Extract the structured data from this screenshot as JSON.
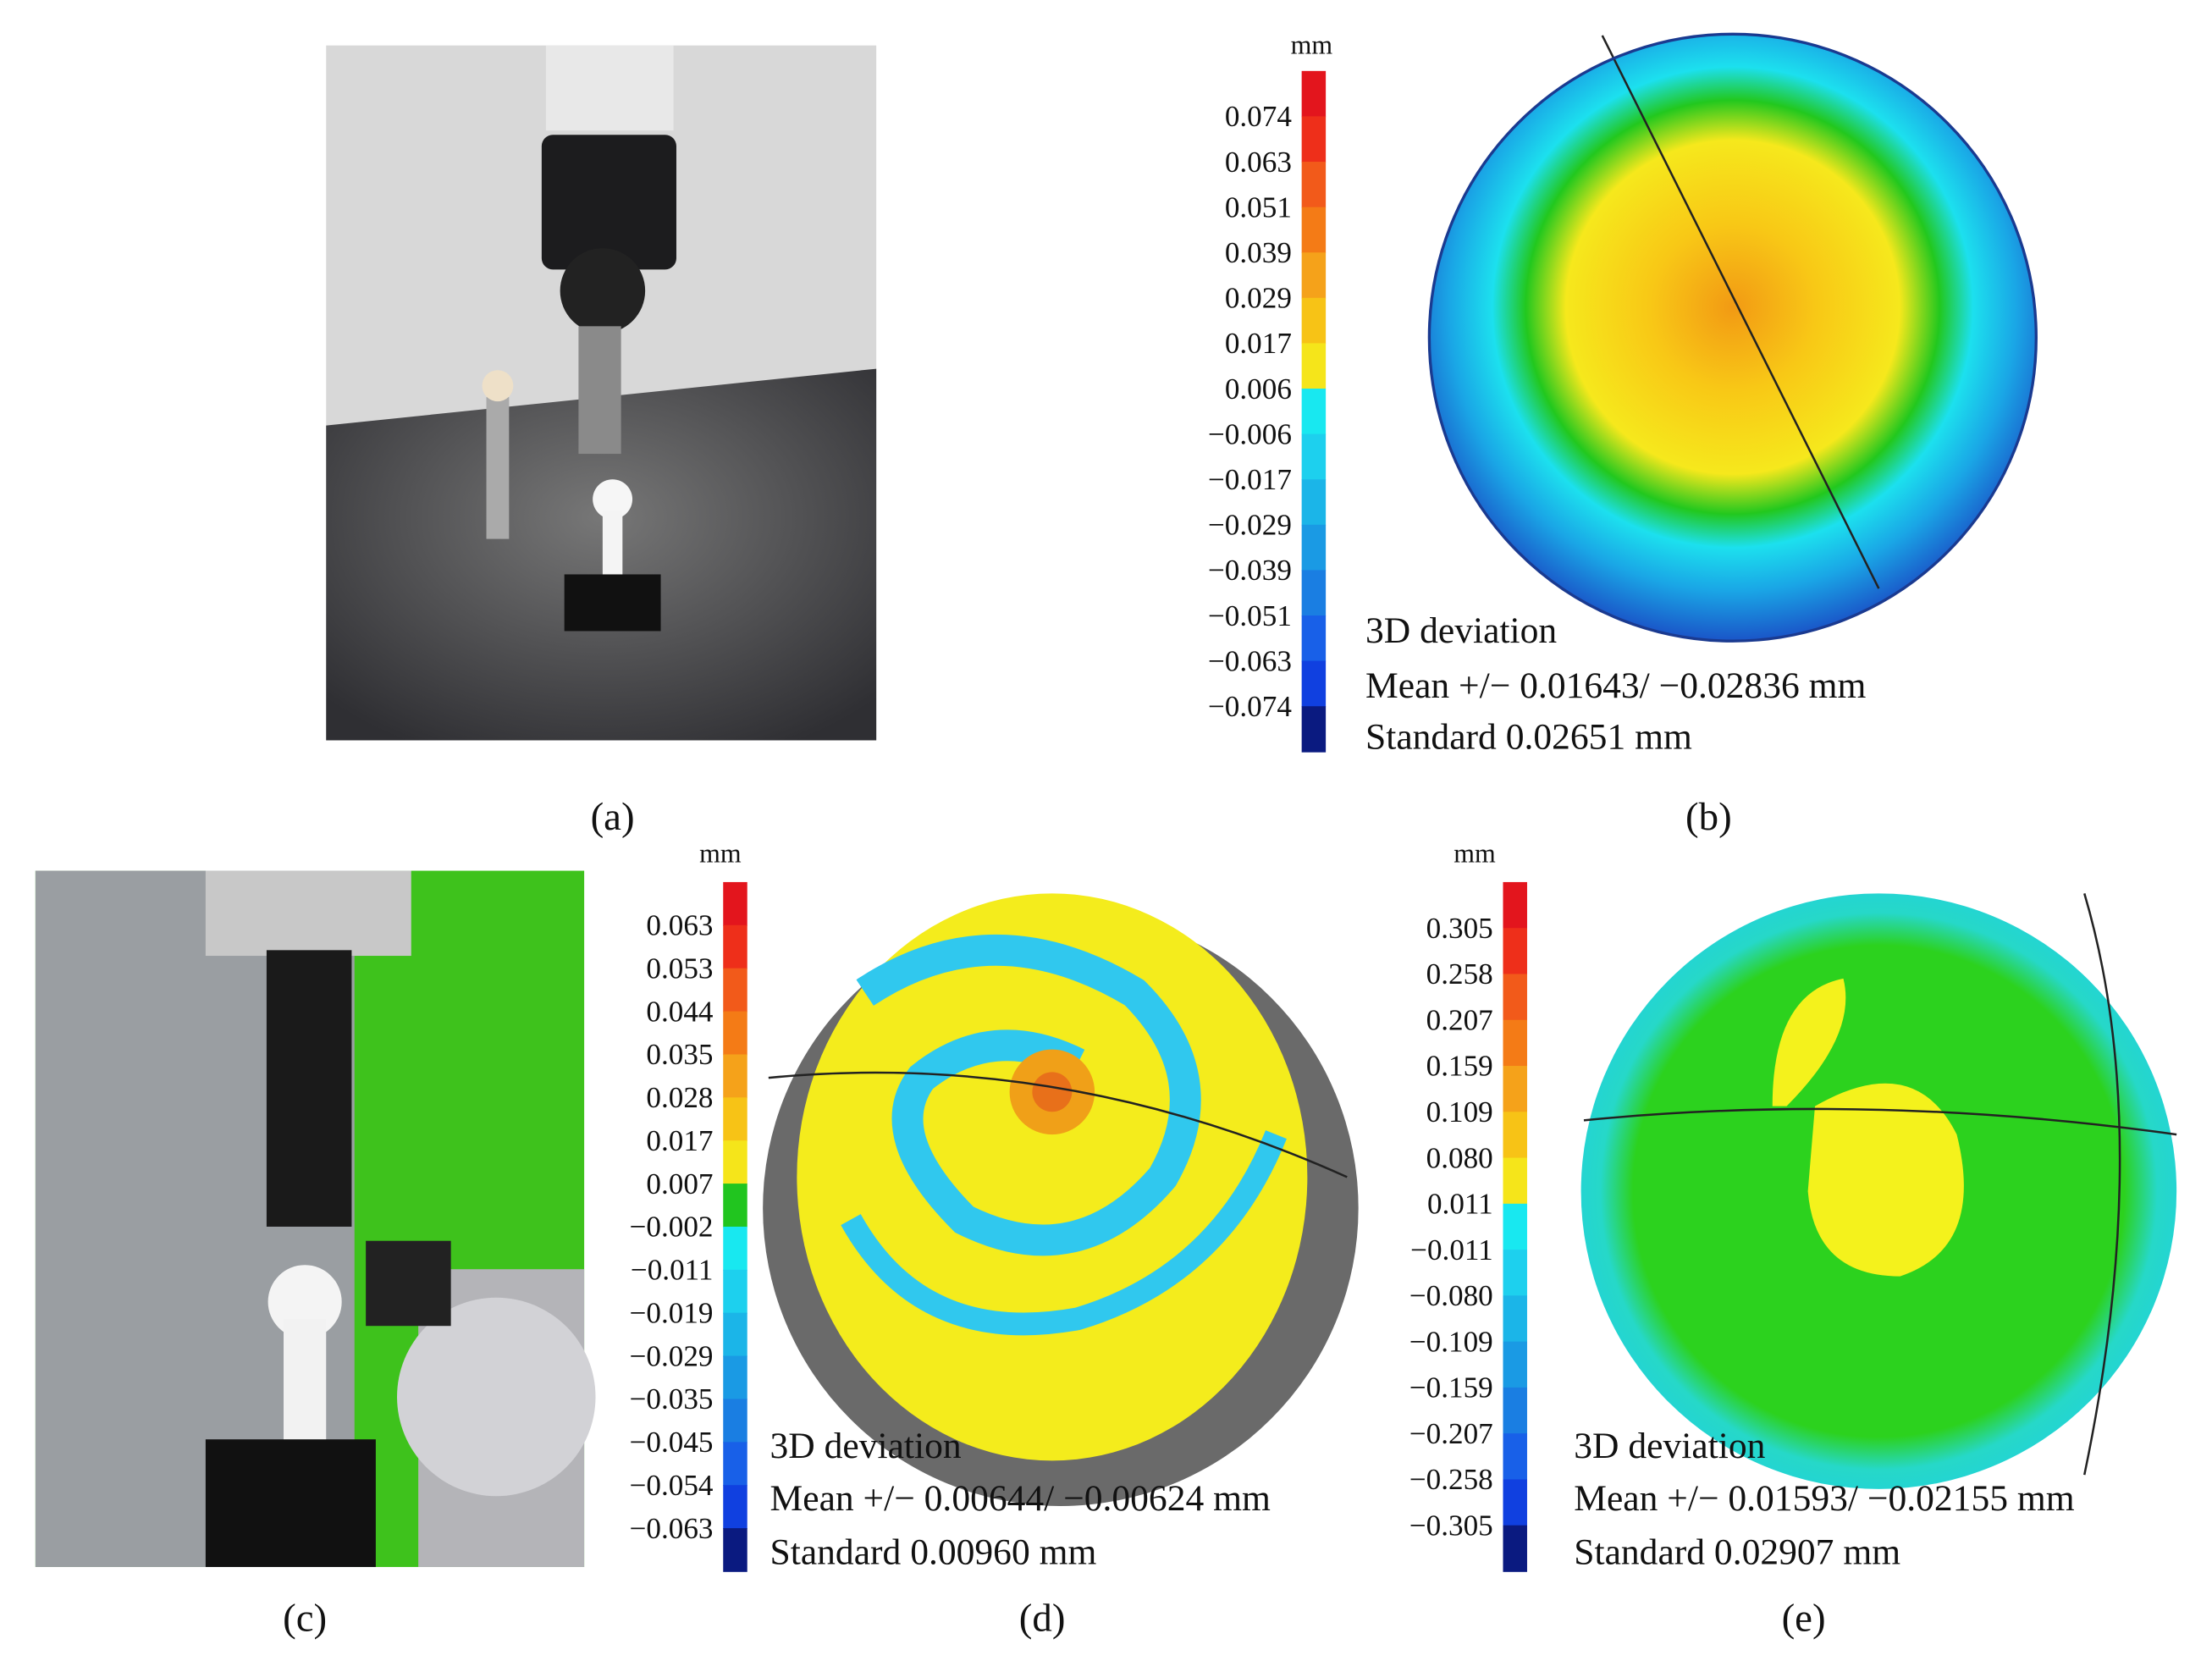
{
  "panels": [
    {
      "label": "(a)"
    },
    {
      "label": "(b)",
      "unit": "mm",
      "scale": [
        "0.074",
        "0.063",
        "0.051",
        "0.039",
        "0.029",
        "0.017",
        "0.006",
        "−0.006",
        "−0.017",
        "−0.029",
        "−0.039",
        "−0.051",
        "−0.063",
        "−0.074"
      ],
      "caption": [
        "3D deviation",
        "Mean +/− 0.01643/ −0.02836 mm",
        "Standard 0.02651 mm"
      ]
    },
    {
      "label": "(c)"
    },
    {
      "label": "(d)",
      "unit": "mm",
      "scale": [
        "0.063",
        "0.053",
        "0.044",
        "0.035",
        "0.028",
        "0.017",
        "0.007",
        "−0.002",
        "−0.011",
        "−0.019",
        "−0.029",
        "−0.035",
        "−0.045",
        "−0.054",
        "−0.063"
      ],
      "caption": [
        "3D deviation",
        "Mean +/− 0.00644/ −0.00624 mm",
        "Standard 0.00960 mm"
      ]
    },
    {
      "label": "(e)",
      "unit": "mm",
      "scale": [
        "0.305",
        "0.258",
        "0.207",
        "0.159",
        "0.109",
        "0.080",
        "0.011",
        "−0.011",
        "−0.080",
        "−0.109",
        "−0.159",
        "−0.207",
        "−0.258",
        "−0.305"
      ],
      "caption": [
        "3D deviation",
        "Mean +/− 0.01593/ −0.02155 mm",
        "Standard 0.02907 mm"
      ]
    }
  ]
}
